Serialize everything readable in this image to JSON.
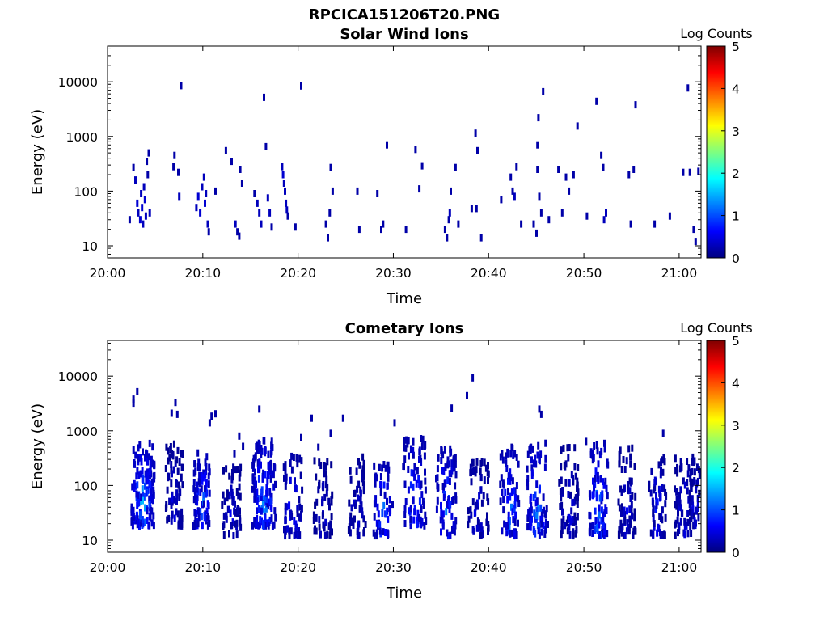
{
  "figure": {
    "suptitle": "RPCICA151206T20.PNG"
  },
  "colors": {
    "axis": "#000000",
    "background": "#ffffff",
    "colormap": [
      "#00007f",
      "#0000ff",
      "#007fff",
      "#00ffff",
      "#7fff7f",
      "#ffff00",
      "#ff7f00",
      "#ff0000",
      "#7f0000"
    ]
  },
  "chart_data": [
    {
      "type": "heatmap",
      "title": "Solar Wind Ions",
      "xlabel": "Time",
      "ylabel": "Energy (eV)",
      "yscale": "log",
      "ylim": [
        6,
        45000
      ],
      "xlim": [
        "20:00",
        "21:02"
      ],
      "xlim_minutes": [
        0,
        62.3
      ],
      "xticks": [
        "20:00",
        "20:10",
        "20:20",
        "20:30",
        "20:40",
        "20:50",
        "21:00"
      ],
      "yticks": [
        10,
        100,
        1000,
        10000
      ],
      "yticklabels": [
        "10",
        "100",
        "1000",
        "10000"
      ],
      "colorbar": {
        "label": "Log Counts",
        "range": [
          0,
          5
        ],
        "ticks": [
          "0",
          "1",
          "2",
          "3",
          "4",
          "5"
        ]
      },
      "grid": false,
      "points_note": "[minute offset from 20:00, energy eV, log counts]",
      "points": [
        [
          2.2,
          30,
          0.2
        ],
        [
          2.6,
          270,
          0.2
        ],
        [
          2.8,
          160,
          0.3
        ],
        [
          3.0,
          60,
          0.4
        ],
        [
          3.1,
          40,
          0.3
        ],
        [
          3.3,
          30,
          0.4
        ],
        [
          3.4,
          90,
          0.3
        ],
        [
          3.5,
          50,
          0.4
        ],
        [
          3.6,
          25,
          0.3
        ],
        [
          3.7,
          120,
          0.3
        ],
        [
          3.8,
          70,
          0.4
        ],
        [
          3.9,
          35,
          0.3
        ],
        [
          4.0,
          350,
          0.2
        ],
        [
          4.1,
          200,
          0.2
        ],
        [
          4.2,
          500,
          0.2
        ],
        [
          4.3,
          40,
          0.3
        ],
        [
          6.8,
          280,
          0.2
        ],
        [
          6.9,
          450,
          0.2
        ],
        [
          7.3,
          220,
          0.2
        ],
        [
          7.4,
          80,
          0.3
        ],
        [
          7.6,
          8500,
          0.2
        ],
        [
          9.2,
          50,
          0.3
        ],
        [
          9.4,
          80,
          0.4
        ],
        [
          9.6,
          40,
          0.4
        ],
        [
          9.8,
          120,
          0.3
        ],
        [
          10.0,
          180,
          0.3
        ],
        [
          10.1,
          60,
          0.4
        ],
        [
          10.2,
          90,
          0.3
        ],
        [
          10.4,
          25,
          0.3
        ],
        [
          10.5,
          18,
          0.2
        ],
        [
          11.2,
          100,
          0.2
        ],
        [
          12.3,
          550,
          0.2
        ],
        [
          12.9,
          350,
          0.2
        ],
        [
          13.3,
          25,
          0.3
        ],
        [
          13.5,
          18,
          0.2
        ],
        [
          13.7,
          15,
          0.2
        ],
        [
          13.8,
          250,
          0.2
        ],
        [
          14.0,
          140,
          0.2
        ],
        [
          15.3,
          90,
          0.2
        ],
        [
          15.6,
          60,
          0.3
        ],
        [
          15.8,
          40,
          0.3
        ],
        [
          16.0,
          25,
          0.3
        ],
        [
          16.3,
          5200,
          0.2
        ],
        [
          16.5,
          650,
          0.2
        ],
        [
          16.7,
          75,
          0.3
        ],
        [
          16.9,
          40,
          0.3
        ],
        [
          17.1,
          22,
          0.2
        ],
        [
          18.2,
          280,
          0.3
        ],
        [
          18.3,
          200,
          0.4
        ],
        [
          18.4,
          140,
          0.3
        ],
        [
          18.5,
          100,
          0.3
        ],
        [
          18.6,
          60,
          0.3
        ],
        [
          18.7,
          45,
          0.3
        ],
        [
          18.8,
          35,
          0.2
        ],
        [
          19.6,
          22,
          0.2
        ],
        [
          20.2,
          8400,
          0.2
        ],
        [
          22.8,
          25,
          0.2
        ],
        [
          23.0,
          14,
          0.2
        ],
        [
          23.2,
          40,
          0.2
        ],
        [
          23.3,
          270,
          0.2
        ],
        [
          23.5,
          100,
          0.2
        ],
        [
          26.1,
          100,
          0.2
        ],
        [
          26.3,
          20,
          0.2
        ],
        [
          28.2,
          90,
          0.2
        ],
        [
          28.6,
          20,
          0.2
        ],
        [
          28.8,
          25,
          0.2
        ],
        [
          29.2,
          700,
          0.2
        ],
        [
          31.2,
          20,
          0.2
        ],
        [
          32.2,
          580,
          0.2
        ],
        [
          32.6,
          110,
          0.2
        ],
        [
          32.9,
          290,
          0.2
        ],
        [
          35.3,
          20,
          0.2
        ],
        [
          35.5,
          14,
          0.2
        ],
        [
          35.7,
          30,
          0.2
        ],
        [
          35.8,
          40,
          0.3
        ],
        [
          35.9,
          100,
          0.2
        ],
        [
          36.4,
          270,
          0.2
        ],
        [
          36.7,
          25,
          0.2
        ],
        [
          38.1,
          48,
          0.2
        ],
        [
          38.5,
          1150,
          0.2
        ],
        [
          38.6,
          48,
          0.2
        ],
        [
          38.7,
          550,
          0.2
        ],
        [
          39.1,
          14,
          0.2
        ],
        [
          41.2,
          70,
          0.2
        ],
        [
          42.2,
          180,
          0.2
        ],
        [
          42.4,
          100,
          0.2
        ],
        [
          42.6,
          80,
          0.3
        ],
        [
          42.8,
          280,
          0.2
        ],
        [
          43.3,
          25,
          0.2
        ],
        [
          44.6,
          25,
          0.2
        ],
        [
          44.9,
          17,
          0.2
        ],
        [
          45.0,
          250,
          0.2
        ],
        [
          45.0,
          700,
          0.2
        ],
        [
          45.1,
          2200,
          0.2
        ],
        [
          45.2,
          80,
          0.2
        ],
        [
          45.4,
          40,
          0.2
        ],
        [
          45.6,
          6600,
          0.2
        ],
        [
          46.2,
          30,
          0.2
        ],
        [
          47.2,
          250,
          0.2
        ],
        [
          47.6,
          40,
          0.2
        ],
        [
          48.0,
          180,
          0.2
        ],
        [
          48.3,
          100,
          0.2
        ],
        [
          48.8,
          200,
          0.2
        ],
        [
          49.2,
          1550,
          0.2
        ],
        [
          50.2,
          35,
          0.2
        ],
        [
          51.2,
          4400,
          0.2
        ],
        [
          51.7,
          450,
          0.2
        ],
        [
          51.9,
          270,
          0.2
        ],
        [
          52.0,
          30,
          0.3
        ],
        [
          52.2,
          40,
          0.3
        ],
        [
          54.6,
          200,
          0.2
        ],
        [
          54.8,
          25,
          0.2
        ],
        [
          55.1,
          250,
          0.2
        ],
        [
          55.3,
          3800,
          0.2
        ],
        [
          57.3,
          25,
          0.2
        ],
        [
          58.9,
          35,
          0.2
        ],
        [
          60.3,
          220,
          0.2
        ],
        [
          60.8,
          7700,
          0.2
        ],
        [
          61.0,
          220,
          0.2
        ],
        [
          61.4,
          20,
          0.2
        ],
        [
          61.6,
          12,
          0.2
        ],
        [
          61.9,
          230,
          0.2
        ],
        [
          62.1,
          30,
          0.2
        ],
        [
          62.3,
          1350,
          0.2
        ]
      ]
    },
    {
      "type": "heatmap",
      "title": "Cometary Ions",
      "xlabel": "Time",
      "ylabel": "Energy (eV)",
      "yscale": "log",
      "ylim": [
        6,
        45000
      ],
      "xlim": [
        "20:00",
        "21:02"
      ],
      "xlim_minutes": [
        0,
        62.3
      ],
      "xticks": [
        "20:00",
        "20:10",
        "20:20",
        "20:30",
        "20:40",
        "20:50",
        "21:00"
      ],
      "yticks": [
        10,
        100,
        1000,
        10000
      ],
      "yticklabels": [
        "10",
        "100",
        "1000",
        "10000"
      ],
      "colorbar": {
        "label": "Log Counts",
        "range": [
          0,
          5
        ],
        "ticks": [
          "0",
          "1",
          "2",
          "3",
          "4",
          "5"
        ]
      },
      "grid": false,
      "points_note": "[minute offset from 20:00, energy eV, log counts]",
      "clusters_note": "[center minute, half-width minutes, energy low eV, energy high eV, peak log counts, point count]",
      "clusters": [
        [
          3.6,
          1.2,
          18,
          600,
          1.9,
          150
        ],
        [
          6.9,
          0.9,
          18,
          600,
          0.7,
          70
        ],
        [
          9.8,
          0.9,
          18,
          400,
          1.6,
          80
        ],
        [
          12.9,
          1.0,
          12,
          250,
          0.7,
          60
        ],
        [
          16.3,
          1.2,
          18,
          700,
          1.7,
          140
        ],
        [
          19.3,
          1.0,
          12,
          400,
          1.1,
          60
        ],
        [
          22.5,
          1.0,
          12,
          300,
          0.6,
          55
        ],
        [
          26.1,
          0.9,
          12,
          350,
          0.7,
          55
        ],
        [
          28.8,
          1.0,
          12,
          250,
          1.5,
          55
        ],
        [
          32.1,
          1.2,
          18,
          800,
          1.4,
          80
        ],
        [
          35.4,
          1.1,
          12,
          500,
          1.5,
          80
        ],
        [
          38.8,
          1.1,
          12,
          300,
          0.8,
          60
        ],
        [
          42.1,
          1.0,
          12,
          500,
          1.5,
          70
        ],
        [
          45.0,
          1.1,
          12,
          600,
          1.6,
          80
        ],
        [
          48.3,
          1.0,
          12,
          500,
          0.7,
          70
        ],
        [
          51.4,
          1.0,
          12,
          600,
          1.7,
          80
        ],
        [
          54.4,
          0.9,
          12,
          500,
          0.7,
          65
        ],
        [
          57.6,
          0.9,
          12,
          400,
          0.9,
          60
        ],
        [
          60.4,
          1.0,
          12,
          350,
          0.8,
          60
        ],
        [
          61.6,
          0.6,
          18,
          350,
          0.9,
          40
        ]
      ],
      "points": [
        [
          2.6,
          3800,
          0.2
        ],
        [
          2.6,
          3200,
          0.2
        ],
        [
          3.0,
          5200,
          0.2
        ],
        [
          6.6,
          2100,
          0.2
        ],
        [
          7.0,
          3300,
          0.2
        ],
        [
          7.2,
          2000,
          0.2
        ],
        [
          10.6,
          1400,
          0.2
        ],
        [
          10.8,
          1850,
          0.2
        ],
        [
          11.2,
          2050,
          0.2
        ],
        [
          13.2,
          380,
          0.2
        ],
        [
          13.7,
          800,
          0.2
        ],
        [
          14.1,
          520,
          0.2
        ],
        [
          15.8,
          2500,
          0.2
        ],
        [
          20.2,
          750,
          0.2
        ],
        [
          21.3,
          1700,
          0.2
        ],
        [
          22.0,
          500,
          0.2
        ],
        [
          23.3,
          900,
          0.2
        ],
        [
          24.6,
          1700,
          0.2
        ],
        [
          30.0,
          1400,
          0.2
        ],
        [
          33.2,
          550,
          0.2
        ],
        [
          36.0,
          2600,
          0.2
        ],
        [
          37.6,
          4400,
          0.2
        ],
        [
          38.2,
          9300,
          0.2
        ],
        [
          42.3,
          500,
          0.2
        ],
        [
          45.2,
          2500,
          0.2
        ],
        [
          45.4,
          2000,
          0.2
        ],
        [
          50.1,
          640,
          0.2
        ],
        [
          58.2,
          900,
          0.2
        ]
      ]
    }
  ]
}
